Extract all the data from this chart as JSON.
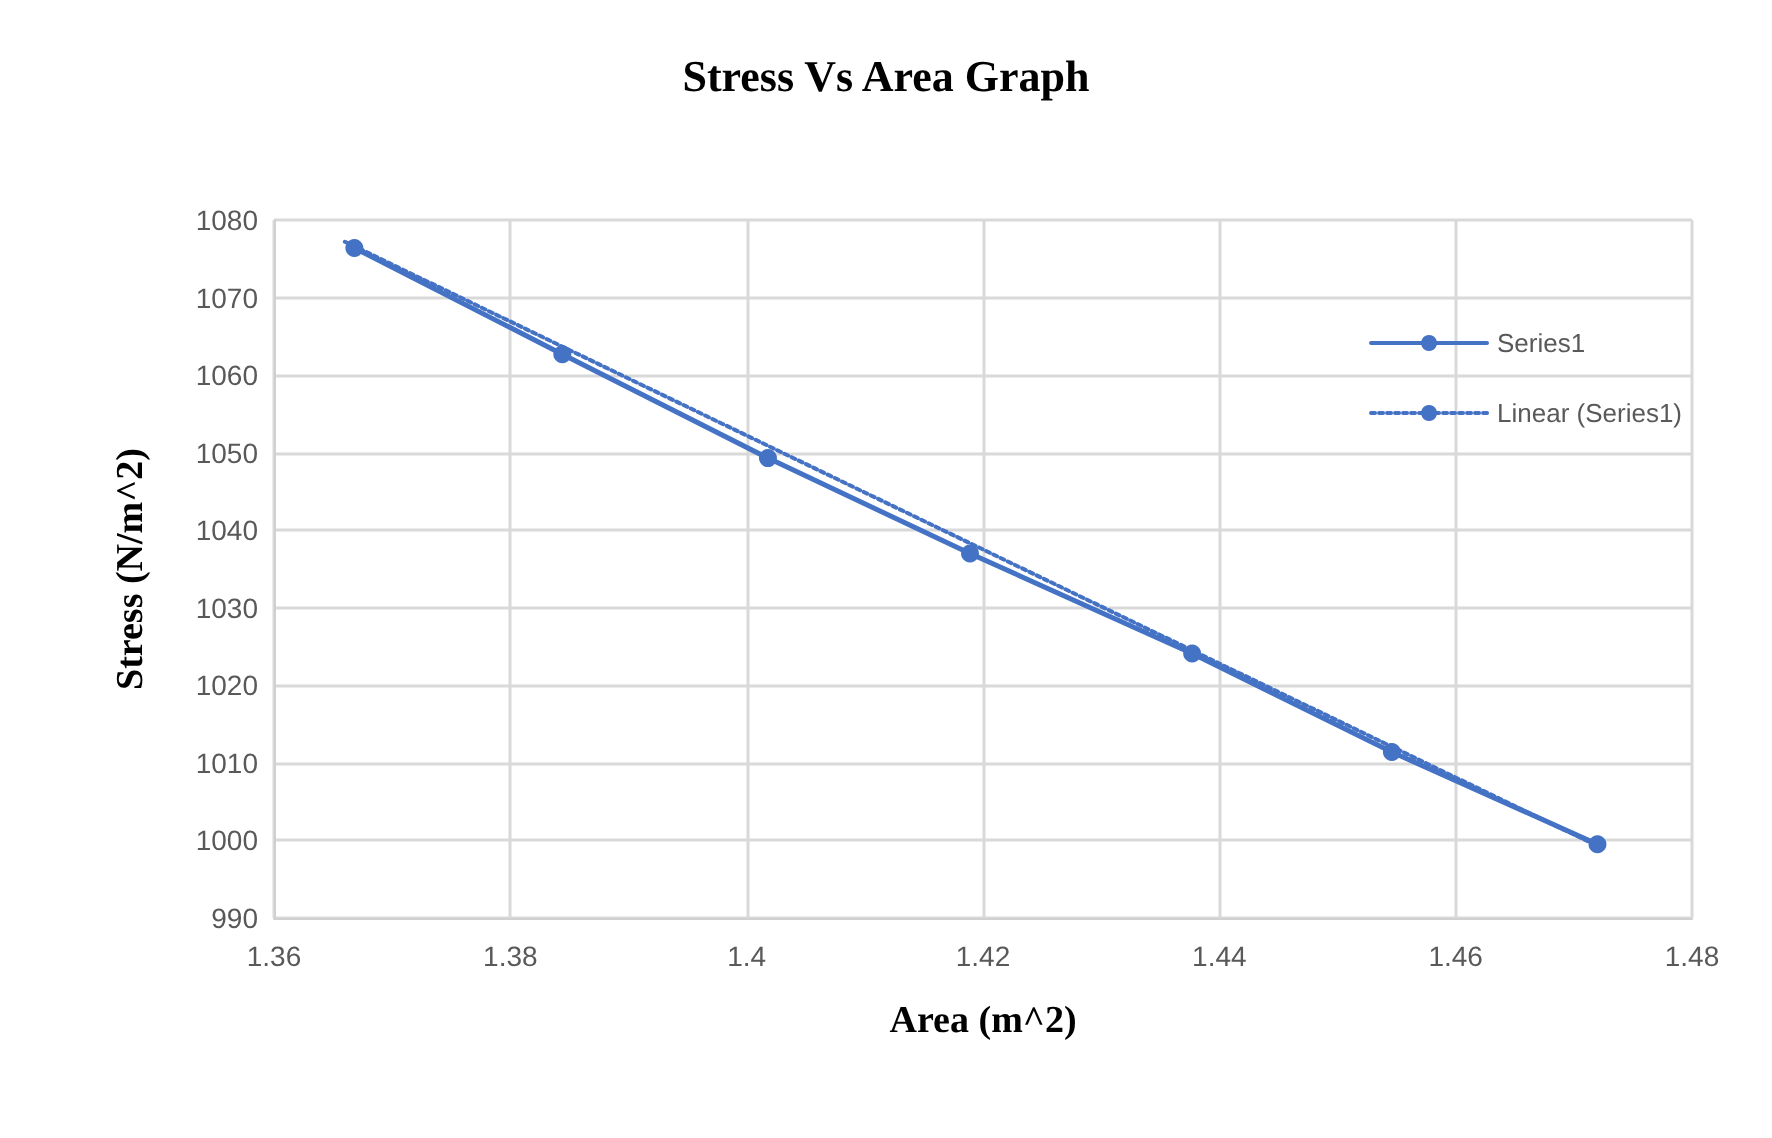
{
  "chart_data": {
    "type": "line",
    "title": "Stress Vs Area Graph",
    "xlabel": "Area (m^2)",
    "ylabel": "Stress (N/m^2)",
    "series": [
      {
        "name": "Series1",
        "color": "#4472c4",
        "x": [
          1.3668,
          1.3844,
          1.4018,
          1.4189,
          1.4377,
          1.4546,
          1.472
        ],
        "values": [
          1076.4,
          1062.7,
          1049.3,
          1037.0,
          1024.1,
          1011.4,
          999.5
        ],
        "marker": "circle",
        "line_style": "solid"
      },
      {
        "name": "Linear (Series1)",
        "color": "#4472c4",
        "x": [
          1.366,
          1.472
        ],
        "values": [
          1077.2,
          999.3
        ],
        "marker": "none",
        "line_style": "dotted"
      }
    ],
    "xlim": [
      1.36,
      1.48
    ],
    "xticks": [
      1.36,
      1.38,
      1.4,
      1.42,
      1.44,
      1.46,
      1.48
    ],
    "ylim": [
      990,
      1080
    ],
    "yticks": [
      990,
      1000,
      1010,
      1020,
      1030,
      1040,
      1050,
      1060,
      1070,
      1080
    ],
    "grid": true,
    "legend": "right"
  }
}
